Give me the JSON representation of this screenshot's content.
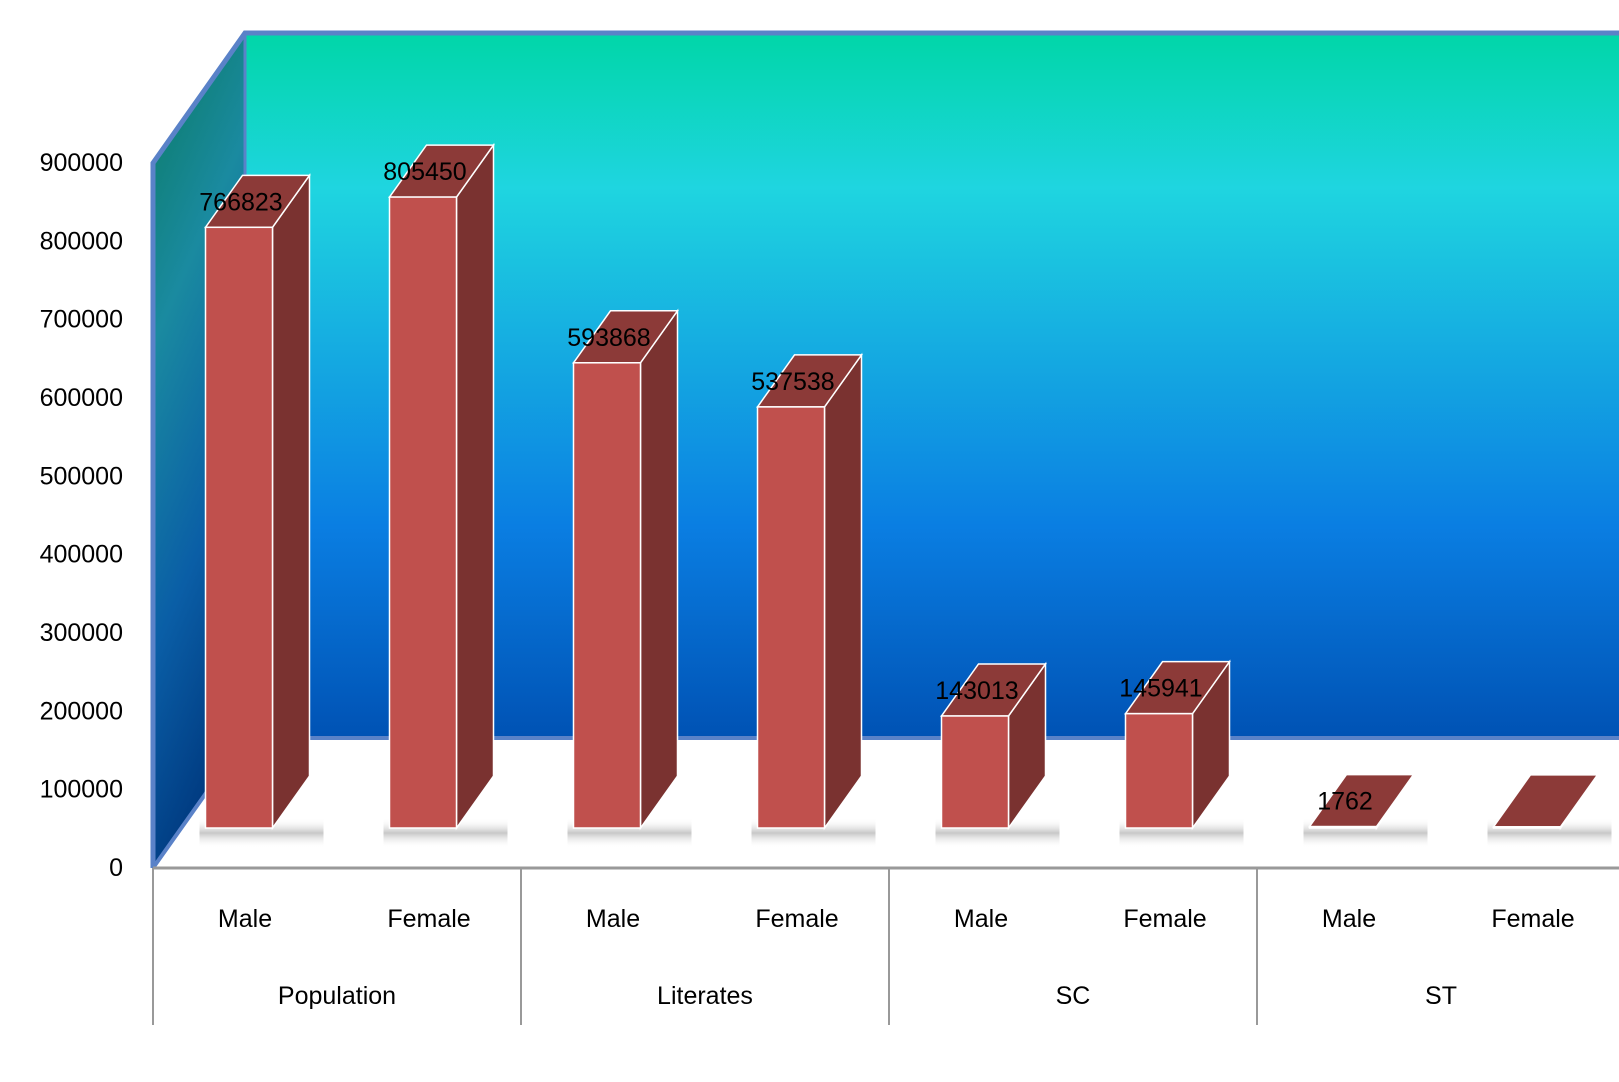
{
  "chart_data": {
    "type": "bar",
    "three_d": true,
    "groups": [
      {
        "label": "Population",
        "categories": [
          "Male",
          "Female"
        ]
      },
      {
        "label": "Literates",
        "categories": [
          "Male",
          "Female"
        ]
      },
      {
        "label": "SC",
        "categories": [
          "Male",
          "Female"
        ]
      },
      {
        "label": "ST",
        "categories": [
          "Male",
          "Female"
        ]
      }
    ],
    "categories": [
      "Male",
      "Female",
      "Male",
      "Female",
      "Male",
      "Female",
      "Male",
      "Female"
    ],
    "values": [
      766823,
      805450,
      593868,
      537538,
      143013,
      145941,
      1762,
      1500
    ],
    "data_labels": [
      "766823",
      "805450",
      "593868",
      "537538",
      "143013",
      "145941",
      "1762",
      ""
    ],
    "y_ticks": [
      "0",
      "100000",
      "200000",
      "300000",
      "400000",
      "500000",
      "600000",
      "700000",
      "800000",
      "900000"
    ],
    "ylim": [
      0,
      900000
    ],
    "title": "",
    "xlabel": "",
    "ylabel": "",
    "legend": "none",
    "grid": false,
    "colors": {
      "bar_front": "#c0504d",
      "bar_side": "#7a3230",
      "bar_top": "#8c3a38",
      "wall_top": "#00d6a8",
      "wall_mid": "#1fd5e0",
      "wall_bottom": "#0050b0",
      "side_wall_top": "#0a7a62",
      "side_wall_bottom": "#003a80",
      "frame": "#5a82c8",
      "axis": "#999999"
    }
  }
}
